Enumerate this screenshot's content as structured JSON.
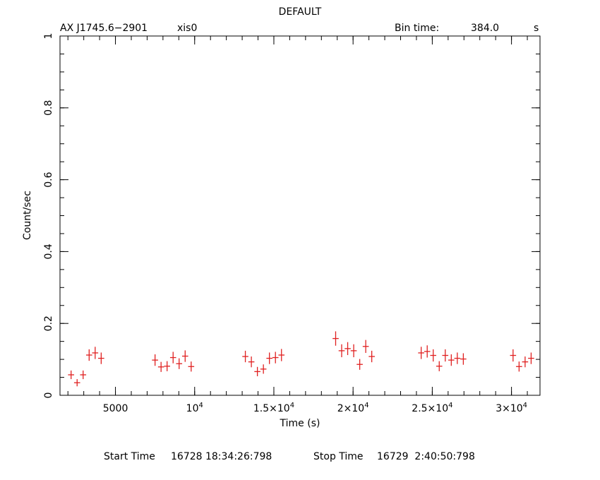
{
  "chart_data": {
    "type": "scatter",
    "title": "DEFAULT",
    "source_name": "AX J1745.6−2901",
    "instrument": "xis0",
    "bin_time_label": "Bin time:",
    "bin_time_value": "384.0",
    "bin_time_unit": "s",
    "xlabel": "Time (s)",
    "ylabel": "Count/sec",
    "xlim": [
      1500,
      31800
    ],
    "ylim": [
      0,
      1
    ],
    "x_ticks": [
      {
        "value": 5000,
        "mant": "5000",
        "exp": ""
      },
      {
        "value": 10000,
        "mant": "10",
        "exp": "4"
      },
      {
        "value": 15000,
        "mant": "1.5×10",
        "exp": "4"
      },
      {
        "value": 20000,
        "mant": "2×10",
        "exp": "4"
      },
      {
        "value": 25000,
        "mant": "2.5×10",
        "exp": "4"
      },
      {
        "value": 30000,
        "mant": "3×10",
        "exp": "4"
      }
    ],
    "y_ticks": [
      {
        "value": 0,
        "label": "0"
      },
      {
        "value": 0.2,
        "label": "0.2"
      },
      {
        "value": 0.4,
        "label": "0.4"
      },
      {
        "value": 0.6,
        "label": "0.6"
      },
      {
        "value": 0.8,
        "label": "0.8"
      },
      {
        "value": 1,
        "label": "1"
      }
    ],
    "x_minor_step": 1000,
    "y_minor_step": 0.05,
    "x_halfwidth": 192,
    "marker_color": "#e02020",
    "series": [
      {
        "points": [
          {
            "x": 2200,
            "y": 0.057,
            "err": 0.012
          },
          {
            "x": 2580,
            "y": 0.035,
            "err": 0.01
          },
          {
            "x": 2960,
            "y": 0.057,
            "err": 0.012
          },
          {
            "x": 3340,
            "y": 0.112,
            "err": 0.016
          },
          {
            "x": 3720,
            "y": 0.118,
            "err": 0.017
          },
          {
            "x": 4100,
            "y": 0.103,
            "err": 0.016
          },
          {
            "x": 7500,
            "y": 0.098,
            "err": 0.016
          },
          {
            "x": 7880,
            "y": 0.079,
            "err": 0.014
          },
          {
            "x": 8260,
            "y": 0.081,
            "err": 0.014
          },
          {
            "x": 8640,
            "y": 0.105,
            "err": 0.016
          },
          {
            "x": 9020,
            "y": 0.088,
            "err": 0.015
          },
          {
            "x": 9400,
            "y": 0.109,
            "err": 0.016
          },
          {
            "x": 9780,
            "y": 0.08,
            "err": 0.014
          },
          {
            "x": 13200,
            "y": 0.108,
            "err": 0.016
          },
          {
            "x": 13580,
            "y": 0.093,
            "err": 0.015
          },
          {
            "x": 13960,
            "y": 0.066,
            "err": 0.013
          },
          {
            "x": 14340,
            "y": 0.073,
            "err": 0.013
          },
          {
            "x": 14720,
            "y": 0.103,
            "err": 0.016
          },
          {
            "x": 15100,
            "y": 0.105,
            "err": 0.016
          },
          {
            "x": 15480,
            "y": 0.112,
            "err": 0.017
          },
          {
            "x": 18900,
            "y": 0.158,
            "err": 0.02
          },
          {
            "x": 19280,
            "y": 0.124,
            "err": 0.018
          },
          {
            "x": 19660,
            "y": 0.13,
            "err": 0.018
          },
          {
            "x": 20040,
            "y": 0.124,
            "err": 0.018
          },
          {
            "x": 20420,
            "y": 0.086,
            "err": 0.015
          },
          {
            "x": 20800,
            "y": 0.136,
            "err": 0.018
          },
          {
            "x": 21180,
            "y": 0.108,
            "err": 0.016
          },
          {
            "x": 24300,
            "y": 0.118,
            "err": 0.017
          },
          {
            "x": 24680,
            "y": 0.122,
            "err": 0.017
          },
          {
            "x": 25060,
            "y": 0.111,
            "err": 0.017
          },
          {
            "x": 25440,
            "y": 0.081,
            "err": 0.014
          },
          {
            "x": 25820,
            "y": 0.111,
            "err": 0.017
          },
          {
            "x": 26200,
            "y": 0.098,
            "err": 0.016
          },
          {
            "x": 26580,
            "y": 0.103,
            "err": 0.016
          },
          {
            "x": 26960,
            "y": 0.101,
            "err": 0.016
          },
          {
            "x": 30100,
            "y": 0.111,
            "err": 0.017
          },
          {
            "x": 30480,
            "y": 0.08,
            "err": 0.014
          },
          {
            "x": 30860,
            "y": 0.093,
            "err": 0.015
          },
          {
            "x": 31240,
            "y": 0.103,
            "err": 0.016
          }
        ]
      }
    ]
  },
  "footer": {
    "start_label": "Start Time",
    "start_value": "16728 18:34:26:798",
    "stop_label": "Stop Time",
    "stop_value": "16729  2:40:50:798"
  }
}
